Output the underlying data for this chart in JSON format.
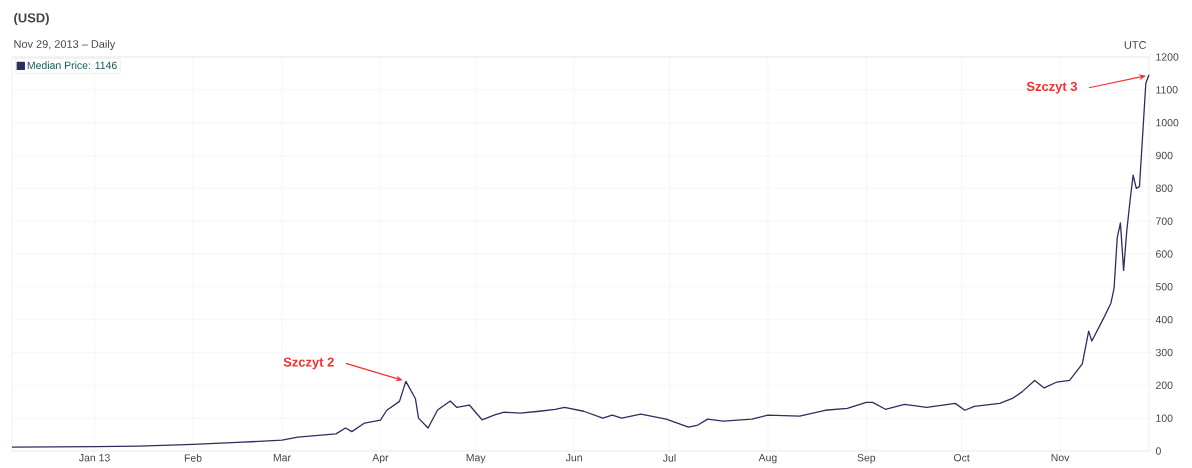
{
  "chart_data": {
    "type": "line",
    "title": "(USD)",
    "subtitle": "Nov 29, 2013 – Daily",
    "annotations": [
      {
        "text": "Szczyt 2",
        "x": "2013-04-09",
        "y": 212
      },
      {
        "text": "Szczyt 3",
        "x": "2013-11-29",
        "y": 1146
      },
      "UTC"
    ],
    "x": [
      "2012-12-06",
      "2013-01-01",
      "2013-01-15",
      "2013-02-01",
      "2013-02-15",
      "2013-03-01",
      "2013-03-06",
      "2013-03-18",
      "2013-03-21",
      "2013-03-23",
      "2013-03-27",
      "2013-04-01",
      "2013-04-03",
      "2013-04-07",
      "2013-04-09",
      "2013-04-12",
      "2013-04-13",
      "2013-04-16",
      "2013-04-19",
      "2013-04-23",
      "2013-04-25",
      "2013-04-29",
      "2013-05-03",
      "2013-05-07",
      "2013-05-10",
      "2013-05-15",
      "2013-05-21",
      "2013-05-26",
      "2013-05-29",
      "2013-06-04",
      "2013-06-10",
      "2013-06-13",
      "2013-06-16",
      "2013-06-22",
      "2013-06-30",
      "2013-07-07",
      "2013-07-10",
      "2013-07-13",
      "2013-07-18",
      "2013-07-27",
      "2013-08-01",
      "2013-08-11",
      "2013-08-19",
      "2013-08-26",
      "2013-09-01",
      "2013-09-03",
      "2013-09-07",
      "2013-09-13",
      "2013-09-20",
      "2013-09-29",
      "2013-10-02",
      "2013-10-05",
      "2013-10-13",
      "2013-10-17",
      "2013-10-20",
      "2013-10-24",
      "2013-10-27",
      "2013-10-31",
      "2013-11-04",
      "2013-11-08",
      "2013-11-10",
      "2013-11-11",
      "2013-11-15",
      "2013-11-17",
      "2013-11-18",
      "2013-11-19",
      "2013-11-20",
      "2013-11-21",
      "2013-11-22",
      "2013-11-23",
      "2013-11-24",
      "2013-11-25",
      "2013-11-26",
      "2013-11-28",
      "2013-11-29"
    ],
    "series": [
      {
        "name": "Median Price: 1146",
        "color": "#2e2e5e",
        "values": [
          12,
          13,
          15,
          20,
          26,
          33,
          42,
          52,
          70,
          59,
          85,
          94,
          124,
          151,
          212,
          160,
          100,
          70,
          125,
          152,
          133,
          140,
          95,
          110,
          118,
          115,
          121,
          127,
          133,
          121,
          100,
          109,
          100,
          112,
          97,
          73,
          79,
          97,
          91,
          97,
          109,
          106,
          124,
          130,
          148,
          148,
          127,
          142,
          133,
          145,
          124,
          136,
          145,
          160,
          180,
          215,
          192,
          210,
          215,
          265,
          365,
          335,
          410,
          450,
          495,
          650,
          695,
          550,
          670,
          760,
          840,
          800,
          805,
          1120,
          1146
        ]
      }
    ],
    "xlim": [
      "2012-12-06",
      "2013-11-29"
    ],
    "xticks": [
      {
        "value": "2013-01-01",
        "label": "Jan 13"
      },
      {
        "value": "2013-02-01",
        "label": "Feb"
      },
      {
        "value": "2013-03-01",
        "label": "Mar"
      },
      {
        "value": "2013-04-01",
        "label": "Apr"
      },
      {
        "value": "2013-05-01",
        "label": "May"
      },
      {
        "value": "2013-06-01",
        "label": "Jun"
      },
      {
        "value": "2013-07-01",
        "label": "Jul"
      },
      {
        "value": "2013-08-01",
        "label": "Aug"
      },
      {
        "value": "2013-09-01",
        "label": "Sep"
      },
      {
        "value": "2013-10-01",
        "label": "Oct"
      },
      {
        "value": "2013-11-01",
        "label": "Nov"
      }
    ],
    "ylim": [
      0,
      1200
    ],
    "yticks": [
      0,
      100,
      200,
      300,
      400,
      500,
      600,
      700,
      800,
      900,
      1000,
      1100,
      1200
    ],
    "grid": true,
    "legend": "top left",
    "marker": "none",
    "line_style": "solid"
  }
}
